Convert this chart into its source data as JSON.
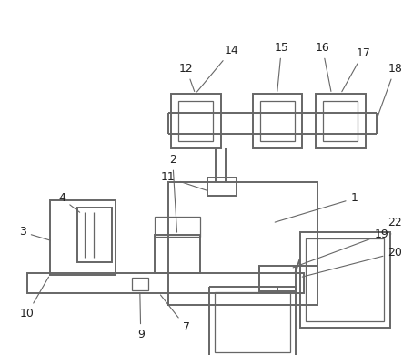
{
  "bg_color": "#ffffff",
  "line_color": "#666666",
  "lw": 1.4,
  "tlw": 0.9,
  "fc": "none",
  "label_color": "#222222",
  "label_fs": 9
}
